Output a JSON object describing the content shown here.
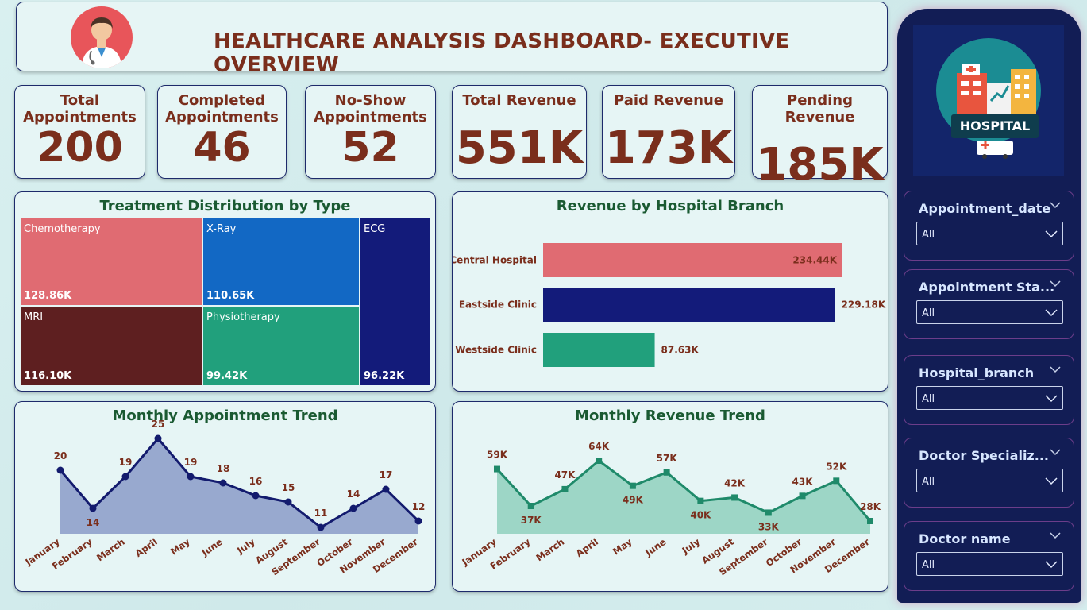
{
  "header": {
    "title": "HEALTHCARE ANALYSIS DASHBOARD- EXECUTIVE OVERVIEW"
  },
  "kpis": [
    {
      "label_line1": "Total",
      "label_line2": "Appointments",
      "value": "200"
    },
    {
      "label_line1": "Completed",
      "label_line2": "Appointments",
      "value": "46"
    },
    {
      "label_line1": "No-Show",
      "label_line2": "Appointments",
      "value": "52"
    },
    {
      "label_line1": "Total Revenue",
      "label_line2": "",
      "value": "551K"
    },
    {
      "label_line1": "Paid Revenue",
      "label_line2": "",
      "value": "173K"
    },
    {
      "label_line1": "Pending Revenue",
      "label_line2": "",
      "value": "185K"
    }
  ],
  "sidebar": {
    "logo_text": "HOSPITAL",
    "slicers": [
      {
        "title": "Appointment_date",
        "value": "All"
      },
      {
        "title": "Appointment Sta...",
        "value": "All"
      },
      {
        "title": "Hospital_branch",
        "value": "All"
      },
      {
        "title": "Doctor Specializ...",
        "value": "All"
      },
      {
        "title": "Doctor name",
        "value": "All"
      }
    ]
  },
  "colors": {
    "title_brown": "#7a2e1c",
    "panel_title_green": "#1a5a32",
    "chemo": "#e06b72",
    "xray": "#1268c4",
    "ecg": "#131b7a",
    "mri": "#5e1f20",
    "physio": "#21a07c",
    "appt_line": "#131b6e",
    "appt_area": "#8a9bc8",
    "rev_line": "#1f8a6a",
    "rev_area": "#8fd0bd"
  },
  "chart_data": [
    {
      "type": "treemap",
      "title": "Treatment Distribution by Type",
      "items": [
        {
          "name": "Chemotherapy",
          "value": 128.86,
          "label": "128.86K"
        },
        {
          "name": "MRI",
          "value": 116.1,
          "label": "116.10K"
        },
        {
          "name": "X-Ray",
          "value": 110.65,
          "label": "110.65K"
        },
        {
          "name": "Physiotherapy",
          "value": 99.42,
          "label": "99.42K"
        },
        {
          "name": "ECG",
          "value": 96.22,
          "label": "96.22K"
        }
      ]
    },
    {
      "type": "bar",
      "orientation": "horizontal",
      "title": "Revenue by Hospital Branch",
      "categories": [
        "Central Hospital",
        "Eastside Clinic",
        "Westside Clinic"
      ],
      "values": [
        234.44,
        229.18,
        87.63
      ],
      "labels": [
        "234.44K",
        "229.18K",
        "87.63K"
      ],
      "unit": "K"
    },
    {
      "type": "area",
      "title": "Monthly Appointment Trend",
      "categories": [
        "January",
        "February",
        "March",
        "April",
        "May",
        "June",
        "July",
        "August",
        "September",
        "October",
        "November",
        "December"
      ],
      "values": [
        20,
        14,
        19,
        25,
        19,
        18,
        16,
        15,
        11,
        14,
        17,
        12
      ],
      "labels": [
        "20",
        "14",
        "19",
        "25",
        "19",
        "18",
        "16",
        "15",
        "11",
        "14",
        "17",
        "12"
      ]
    },
    {
      "type": "area",
      "title": "Monthly Revenue Trend",
      "categories": [
        "January",
        "February",
        "March",
        "April",
        "May",
        "June",
        "July",
        "August",
        "September",
        "October",
        "November",
        "December"
      ],
      "values": [
        59,
        37,
        47,
        64,
        49,
        57,
        40,
        42,
        33,
        43,
        52,
        28
      ],
      "labels": [
        "59K",
        "37K",
        "47K",
        "64K",
        "49K",
        "57K",
        "40K",
        "42K",
        "33K",
        "43K",
        "52K",
        "28K"
      ],
      "unit": "K"
    }
  ]
}
